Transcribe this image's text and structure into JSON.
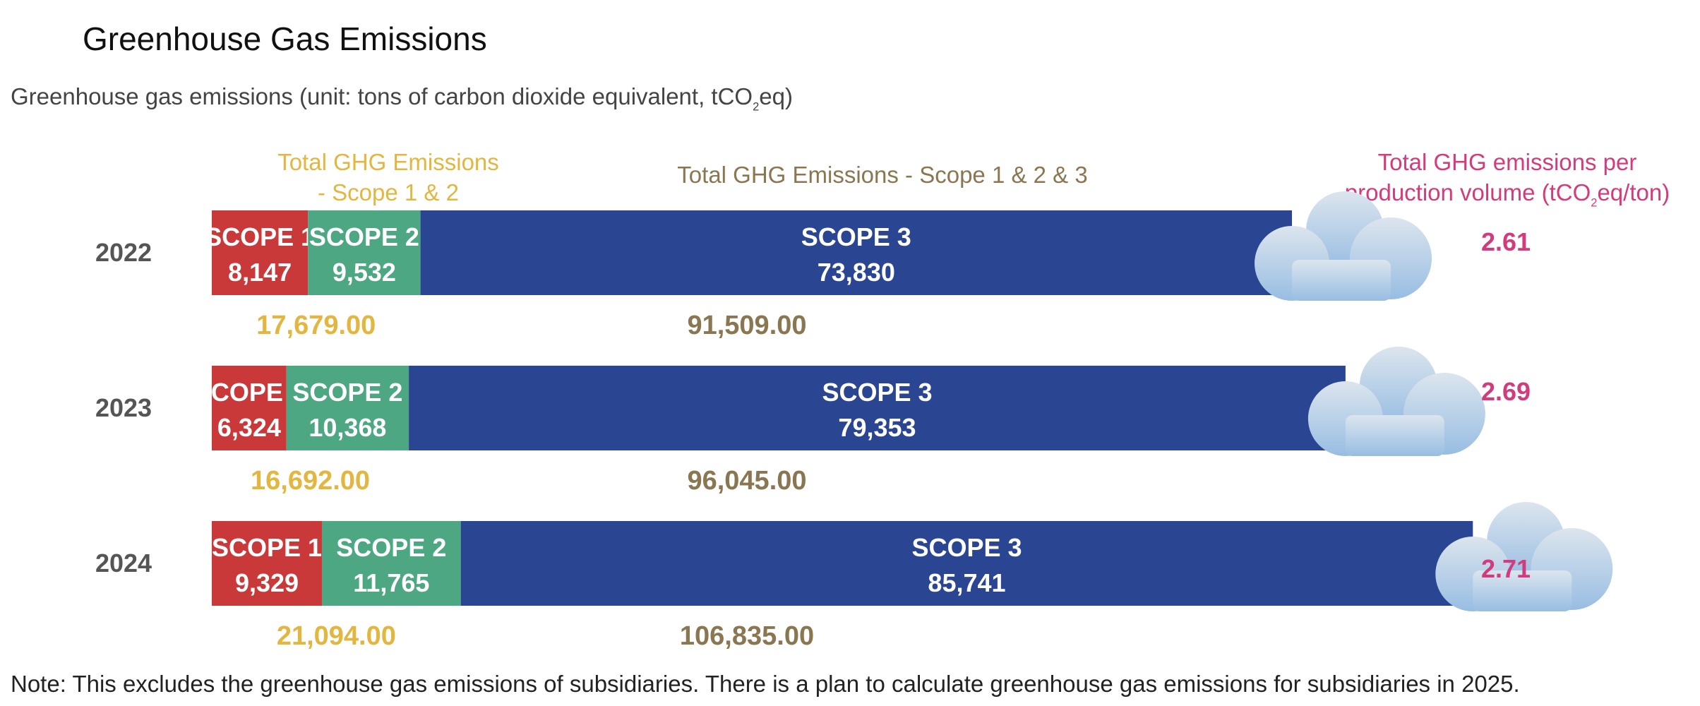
{
  "title": "Greenhouse Gas Emissions",
  "subtitle": {
    "prefix": "Greenhouse gas emissions (unit: tons of carbon dioxide equivalent, tCO",
    "sub": "2",
    "suffix": "eq)"
  },
  "headers": {
    "scope12_line1": "Total GHG Emissions",
    "scope12_line2": "- Scope 1 & 2",
    "scope123": "Total GHG Emissions - Scope 1 & 2 & 3",
    "intensity_line1": "Total GHG emissions per",
    "intensity_line2_prefix": "production volume (tCO",
    "intensity_line2_sub": "2",
    "intensity_line2_suffix": "eq/ton)"
  },
  "note": "Note: This excludes the greenhouse gas emissions of subsidiaries. There is a plan to calculate greenhouse gas emissions for subsidiaries in 2025.",
  "colors": {
    "scope1": "#C9393A",
    "scope2": "#4DA783",
    "scope3": "#2A4592",
    "total12": "#E3B640",
    "total123": "#8A7650",
    "intensity": "#D23C7D",
    "year": "#555555",
    "cloud_top": "#DCE5EE",
    "cloud_bottom": "#98BDE2"
  },
  "chart_data": {
    "type": "bar",
    "orientation": "horizontal",
    "stacked": true,
    "categories": [
      "2022",
      "2023",
      "2024"
    ],
    "series": [
      {
        "name": "SCOPE 1",
        "values": [
          8147,
          6324,
          9329
        ],
        "labels": [
          "8,147",
          "6,324",
          "9,329"
        ]
      },
      {
        "name": "SCOPE 2",
        "values": [
          9532,
          10368,
          11765
        ],
        "labels": [
          "9,532",
          "10,368",
          "11,765"
        ]
      },
      {
        "name": "SCOPE 3",
        "values": [
          73830,
          79353,
          85741
        ],
        "labels": [
          "73,830",
          "79,353",
          "85,741"
        ]
      }
    ],
    "totals_scope12": [
      "17,679.00",
      "16,692.00",
      "21,094.00"
    ],
    "totals_scope123": [
      "91,509.00",
      "96,045.00",
      "106,835.00"
    ],
    "intensity": [
      "2.61",
      "2.69",
      "2.71"
    ],
    "decoration": "cloud-icon at end of each bar"
  }
}
